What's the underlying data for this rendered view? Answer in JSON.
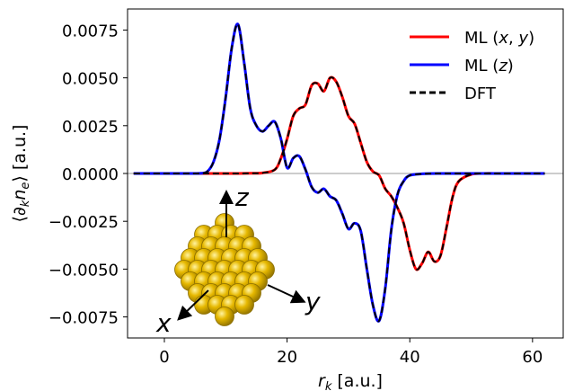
{
  "chart_data": {
    "type": "line",
    "title": "",
    "xlabel": "r_k [a.u.]",
    "ylabel": "⟨∂_k n_e⟩ [a.u.]",
    "xlim": [
      -6,
      65
    ],
    "ylim": [
      -0.0086,
      0.0086
    ],
    "x_ticks": [
      0,
      20,
      40,
      60
    ],
    "y_ticks": [
      -0.0075,
      -0.005,
      -0.0025,
      0.0,
      0.0025,
      0.005,
      0.0075
    ],
    "y_tick_labels": [
      "−0.0075",
      "−0.0050",
      "−0.0025",
      "0.0000",
      "0.0025",
      "0.0050",
      "0.0075"
    ],
    "grid": false,
    "zero_line": true,
    "legend_position": "top-right",
    "legend": [
      {
        "label": "ML (x, y)",
        "color": "#ff0000",
        "style": "solid"
      },
      {
        "label": "ML (z)",
        "color": "#0000ff",
        "style": "solid"
      },
      {
        "label": "DFT",
        "color": "#000000",
        "style": "dashed"
      }
    ],
    "series": [
      {
        "name": "ML (x, y)",
        "color": "#ff0000",
        "x": [
          -5,
          0,
          5,
          8,
          10,
          12,
          14,
          16,
          18,
          19,
          20,
          21,
          22,
          23,
          24,
          25,
          26,
          27,
          28,
          29,
          30,
          31,
          32,
          33,
          34,
          35,
          36,
          37,
          38,
          39,
          40,
          41,
          42,
          43,
          44,
          45,
          46,
          47,
          48,
          50,
          52,
          55,
          60,
          62
        ],
        "values": [
          0,
          0,
          0,
          0,
          0,
          0,
          1e-05,
          3e-05,
          0.0002,
          0.0008,
          0.0018,
          0.003,
          0.0034,
          0.0036,
          0.0046,
          0.0047,
          0.0043,
          0.005,
          0.0048,
          0.004,
          0.003,
          0.0026,
          0.0016,
          0.0006,
          0.0001,
          -0.0001,
          -0.0008,
          -0.0012,
          -0.0018,
          -0.0026,
          -0.004,
          -0.005,
          -0.0047,
          -0.0041,
          -0.0046,
          -0.0043,
          -0.0028,
          -0.0012,
          -0.0004,
          -5e-05,
          0,
          0,
          0,
          0
        ]
      },
      {
        "name": "ML (z)",
        "color": "#0000ff",
        "x": [
          -5,
          0,
          4,
          6,
          7,
          8,
          9,
          10,
          11,
          12,
          13,
          14,
          15,
          16,
          17,
          18,
          19,
          20,
          21,
          22,
          23,
          24,
          25,
          26,
          27,
          28,
          29,
          30,
          31,
          32,
          33,
          34,
          35,
          36,
          37,
          38,
          39,
          40,
          42,
          45,
          50,
          55,
          60,
          62
        ],
        "values": [
          0,
          0,
          0,
          1e-05,
          0.0001,
          0.0006,
          0.0018,
          0.004,
          0.0066,
          0.0078,
          0.0058,
          0.0034,
          0.0025,
          0.0022,
          0.0025,
          0.0027,
          0.0018,
          0.0003,
          0.0008,
          0.0009,
          0.0002,
          -0.0007,
          -0.001,
          -0.0008,
          -0.0012,
          -0.0014,
          -0.0021,
          -0.0029,
          -0.0026,
          -0.003,
          -0.005,
          -0.0069,
          -0.0077,
          -0.006,
          -0.0029,
          -0.0011,
          -0.0004,
          -0.0001,
          -2e-05,
          0,
          0,
          0,
          0,
          0
        ]
      }
    ]
  },
  "axes": {
    "coordinate_labels": {
      "x": "x",
      "y": "y",
      "z": "z"
    }
  },
  "colors": {
    "sphere_fill": "#e6b800",
    "sphere_edge": "#8a6d00",
    "zero_line": "#999999"
  }
}
